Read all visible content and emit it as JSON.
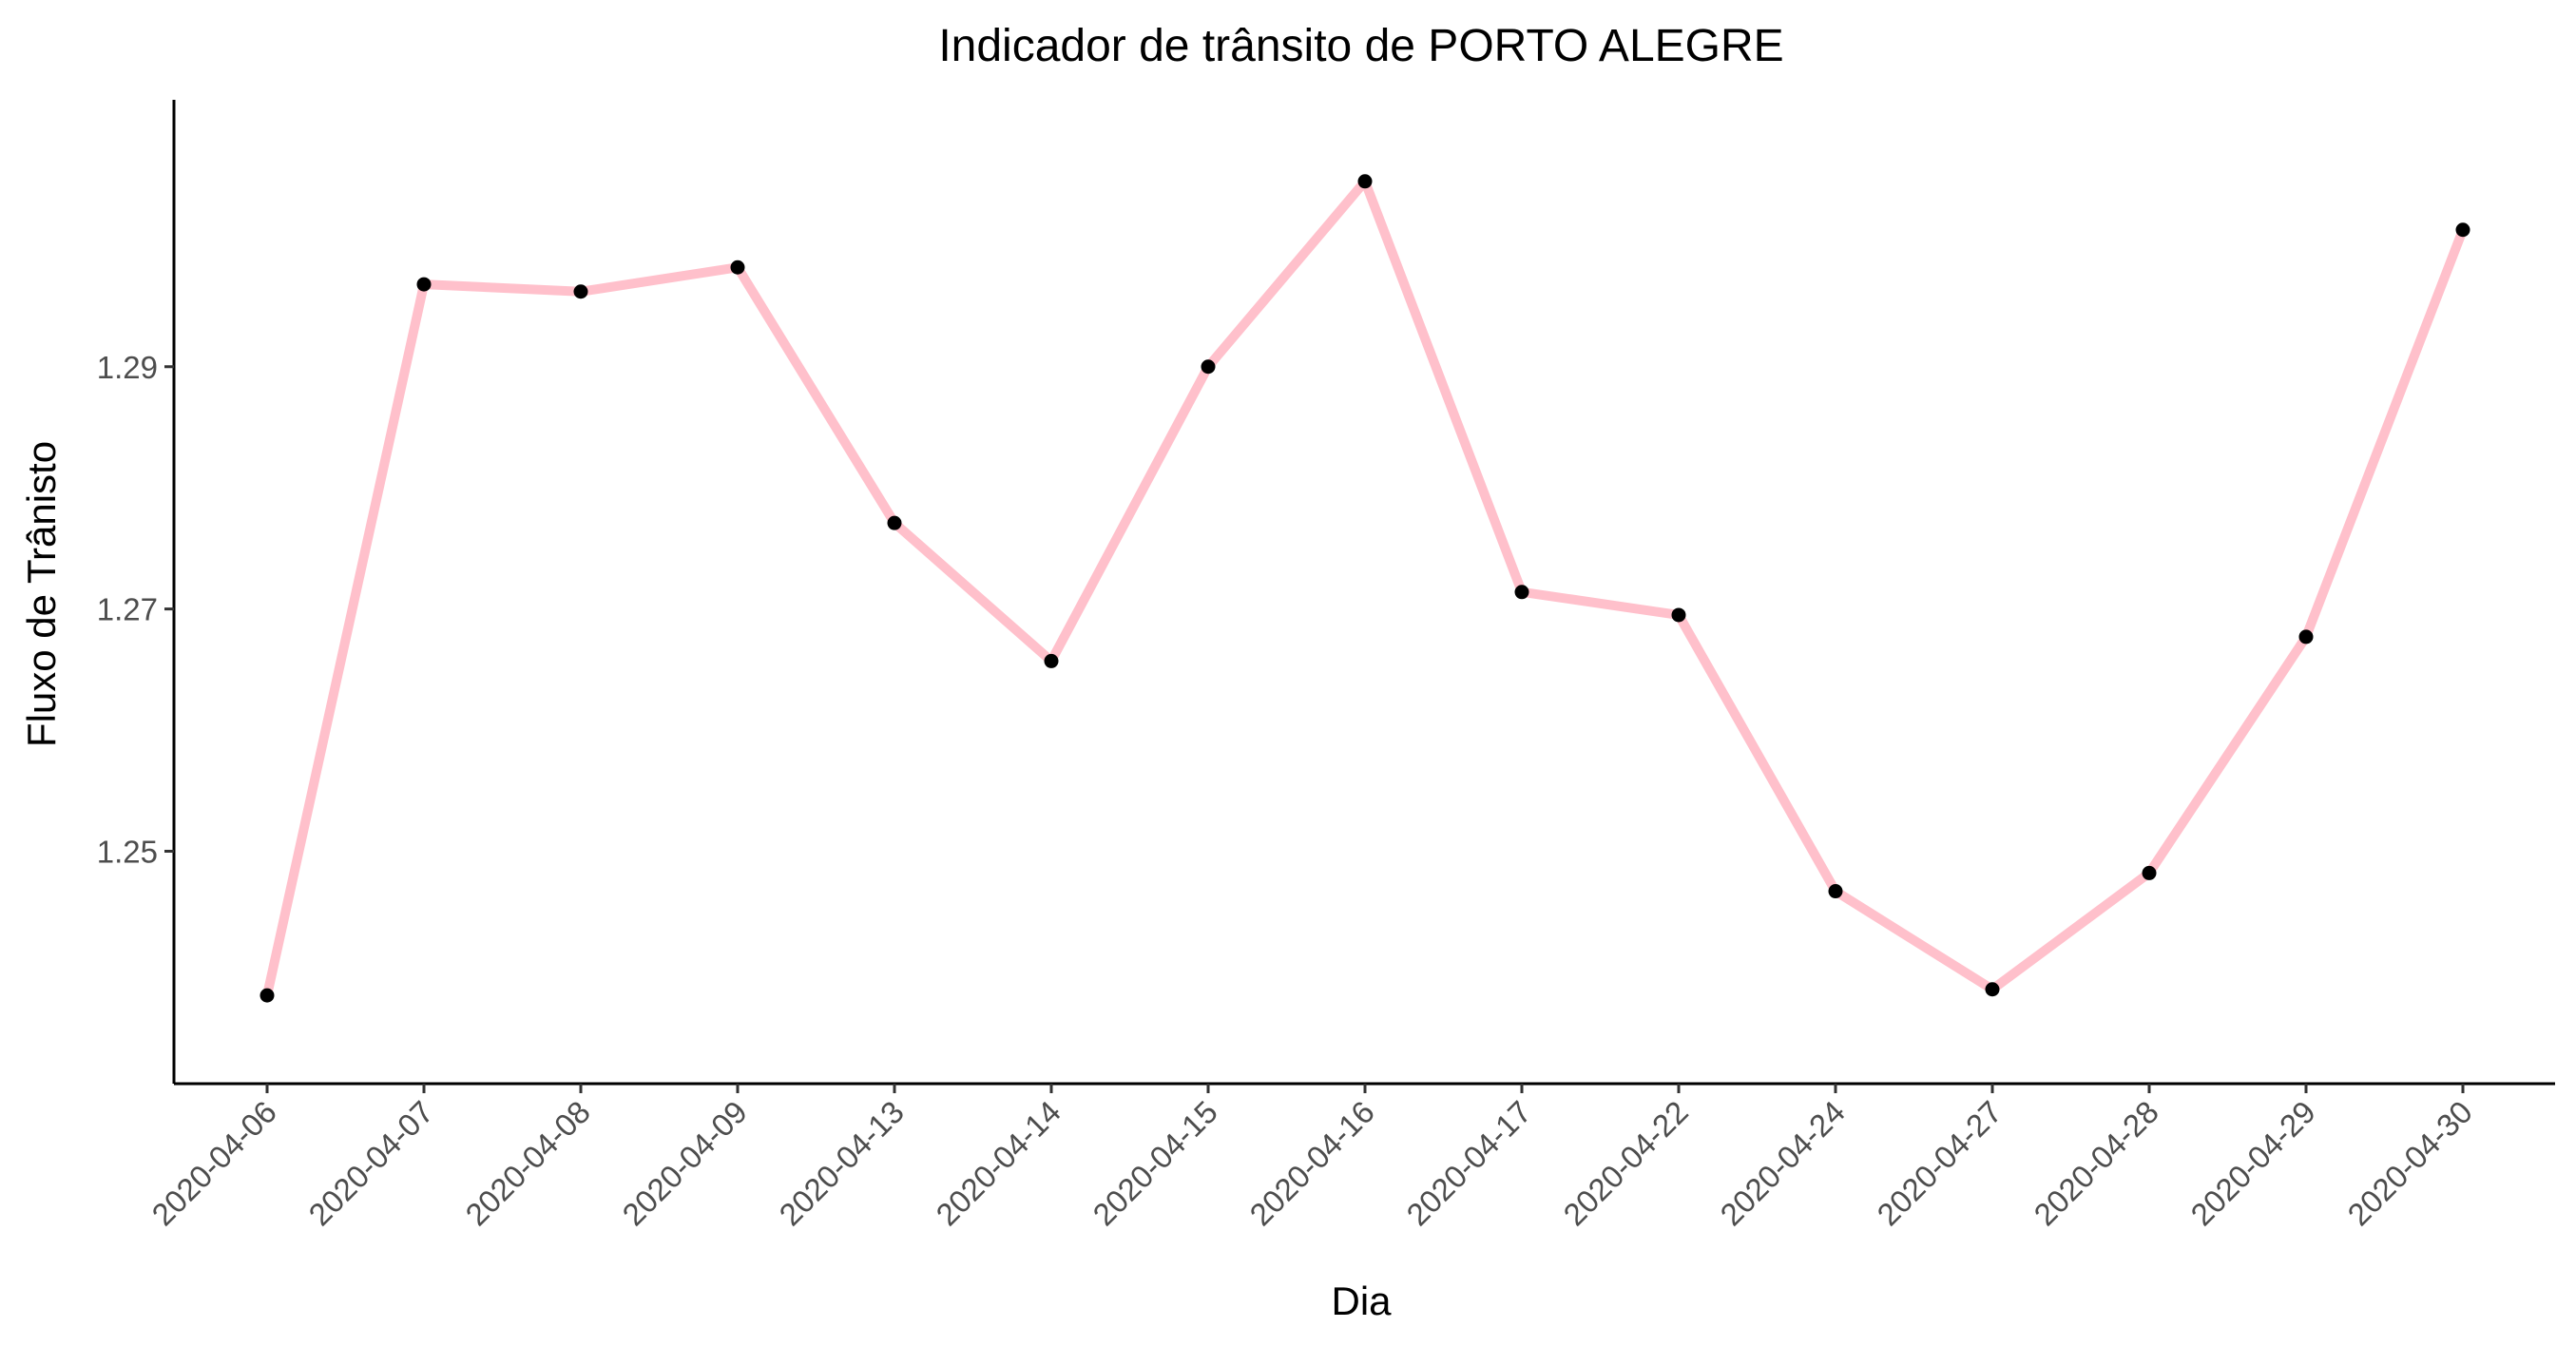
{
  "chart_data": {
    "type": "line",
    "title": "Indicador de trânsito de PORTO ALEGRE",
    "xlabel": "Dia",
    "ylabel": "Fluxo de Trânisto",
    "categories": [
      "2020-04-06",
      "2020-04-07",
      "2020-04-08",
      "2020-04-09",
      "2020-04-13",
      "2020-04-14",
      "2020-04-15",
      "2020-04-16",
      "2020-04-17",
      "2020-04-22",
      "2020-04-24",
      "2020-04-27",
      "2020-04-28",
      "2020-04-29",
      "2020-04-30"
    ],
    "series": [
      {
        "values": [
          1.2381,
          1.2968,
          1.2962,
          1.2982,
          1.2771,
          1.2657,
          1.29,
          1.3053,
          1.2714,
          1.2695,
          1.2467,
          1.2386,
          1.2482,
          1.2677,
          1.3013
        ],
        "line_color": "#FFC0CB",
        "point_color": "#000000"
      }
    ],
    "y_ticks": [
      "1.25",
      "1.27",
      "1.29"
    ],
    "ylim": [
      1.2345,
      1.3085
    ],
    "grid": false,
    "legend": "none"
  }
}
